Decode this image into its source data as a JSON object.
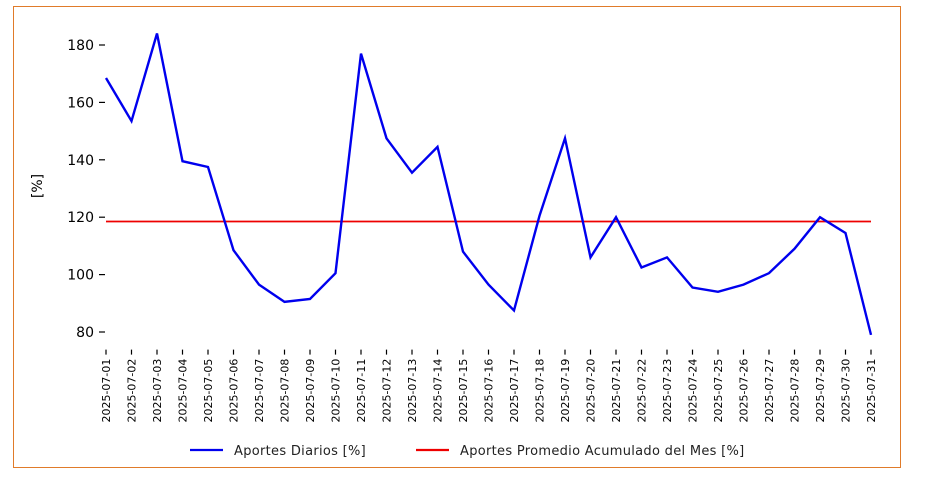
{
  "chart_data": {
    "type": "line",
    "title": "",
    "xlabel": "",
    "ylabel": "[%]",
    "ylim": [
      77,
      190
    ],
    "yticks": [
      80,
      100,
      120,
      140,
      160,
      180
    ],
    "grid": false,
    "legend_position": "bottom-center",
    "categories": [
      "2025-07-01",
      "2025-07-02",
      "2025-07-03",
      "2025-07-04",
      "2025-07-05",
      "2025-07-06",
      "2025-07-07",
      "2025-07-08",
      "2025-07-09",
      "2025-07-10",
      "2025-07-11",
      "2025-07-12",
      "2025-07-13",
      "2025-07-14",
      "2025-07-15",
      "2025-07-16",
      "2025-07-17",
      "2025-07-18",
      "2025-07-19",
      "2025-07-20",
      "2025-07-21",
      "2025-07-22",
      "2025-07-23",
      "2025-07-24",
      "2025-07-25",
      "2025-07-26",
      "2025-07-27",
      "2025-07-28",
      "2025-07-29",
      "2025-07-30",
      "2025-07-31"
    ],
    "series": [
      {
        "name": "Aportes Diarios [%]",
        "color": "#0000ee",
        "values": [
          168.5,
          153.5,
          184,
          139.5,
          137.5,
          108.5,
          96.5,
          90.5,
          91.5,
          100.5,
          177,
          147.5,
          135.5,
          144.5,
          108,
          96.5,
          87.5,
          120.5,
          147.5,
          106,
          120,
          102.5,
          106,
          95.5,
          94,
          96.5,
          100.5,
          109,
          120,
          114.5,
          79
        ]
      },
      {
        "name": "Aportes Promedio Acumulado del Mes [%]",
        "color": "#ee0000",
        "values": [
          118.5,
          118.5,
          118.5,
          118.5,
          118.5,
          118.5,
          118.5,
          118.5,
          118.5,
          118.5,
          118.5,
          118.5,
          118.5,
          118.5,
          118.5,
          118.5,
          118.5,
          118.5,
          118.5,
          118.5,
          118.5,
          118.5,
          118.5,
          118.5,
          118.5,
          118.5,
          118.5,
          118.5,
          118.5,
          118.5,
          118.5
        ]
      }
    ]
  }
}
